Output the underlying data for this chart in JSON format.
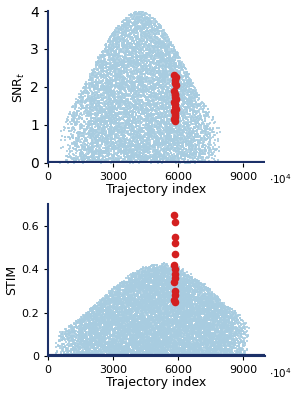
{
  "top_plot": {
    "ylabel": "SNR$_t$",
    "xlabel": "Trajectory index",
    "xlim": [
      0,
      10
    ],
    "ylim": [
      0,
      4
    ],
    "xticks": [
      0,
      3,
      6,
      9
    ],
    "xticklabels": [
      "0",
      "3000",
      "6000",
      "9000"
    ],
    "yticks": [
      0,
      1,
      2,
      3,
      4
    ],
    "yticklabels": [
      "0",
      "1",
      "2",
      "3",
      "4"
    ],
    "scale_label": "$\\cdot10^4$",
    "blue_color": "#a8cce0",
    "red_color": "#d42020",
    "navy_color": "#1c3068"
  },
  "bottom_plot": {
    "ylabel": "STIM",
    "xlabel": "Trajectory index",
    "xlim": [
      0,
      10
    ],
    "ylim": [
      0,
      0.7
    ],
    "xticks": [
      0,
      3,
      6,
      9
    ],
    "xticklabels": [
      "0",
      "3000",
      "6000",
      "9000"
    ],
    "yticks": [
      0,
      0.2,
      0.4,
      0.6
    ],
    "yticklabels": [
      "0",
      "0.2",
      "0.4",
      "0.6"
    ],
    "scale_label": "$\\cdot10^4$",
    "blue_color": "#a8cce0",
    "red_color": "#d42020",
    "navy_color": "#1c3068"
  },
  "seed": 1234,
  "blue_marker_size": 4,
  "red_marker_size": 30
}
